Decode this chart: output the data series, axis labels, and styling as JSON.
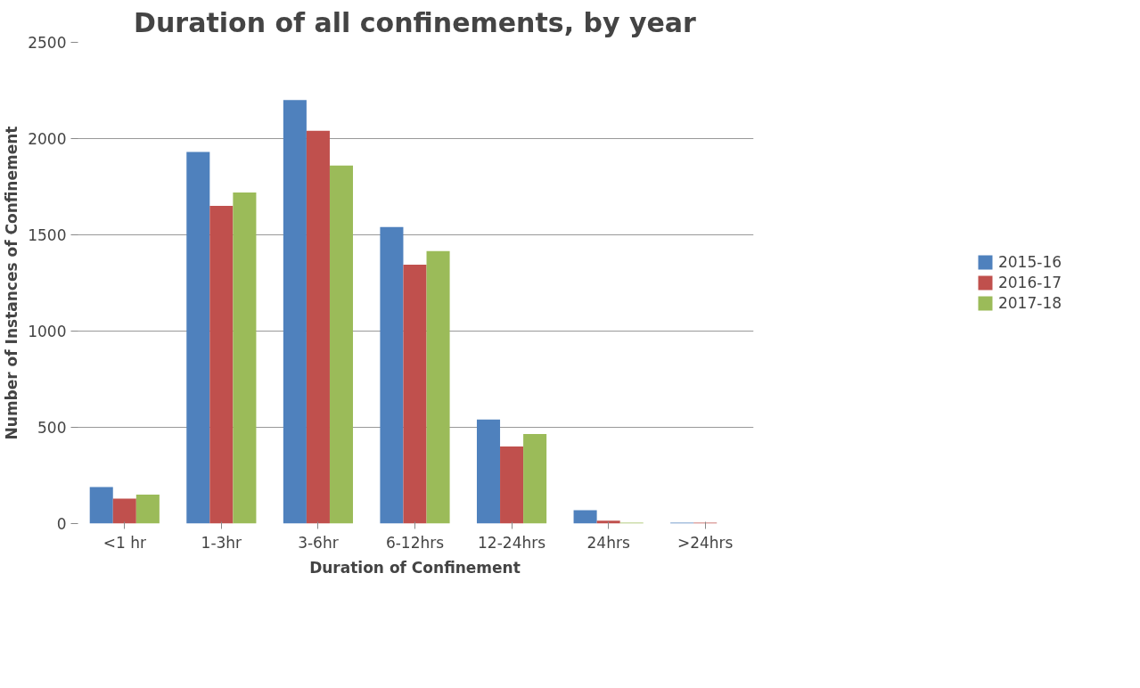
{
  "chart_data": {
    "type": "bar",
    "title": "Duration of all confinements, by year",
    "xlabel": "Duration of Confinement",
    "ylabel": "Number of Instances of Confinement",
    "categories": [
      "<1 hr",
      "1-3hr",
      "3-6hr",
      "6-12hrs",
      "12-24hrs",
      "24hrs",
      ">24hrs"
    ],
    "series": [
      {
        "name": "2015-16",
        "color": "#4f81bd",
        "values": [
          190,
          1930,
          2200,
          1540,
          540,
          70,
          5
        ]
      },
      {
        "name": "2016-17",
        "color": "#c0504d",
        "values": [
          130,
          1650,
          2040,
          1345,
          400,
          15,
          5
        ]
      },
      {
        "name": "2017-18",
        "color": "#9bbb59",
        "values": [
          150,
          1720,
          1860,
          1415,
          465,
          5,
          0
        ]
      }
    ],
    "ylim": [
      0,
      2500
    ],
    "yticks": [
      0,
      500,
      1000,
      1500,
      2000,
      2500
    ],
    "grid": "y",
    "legend": "right"
  }
}
